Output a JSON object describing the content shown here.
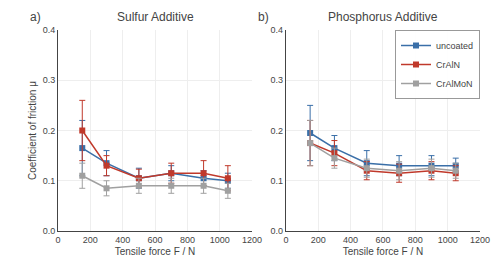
{
  "chart_data": [
    {
      "type": "line",
      "title": "Sulfur Additive",
      "annotations": [
        {
          "text": "a)"
        }
      ],
      "xlabel": "Tensile force F / N",
      "ylabel": "Coefficient of friction μ",
      "x": [
        150,
        300,
        500,
        700,
        900,
        1050
      ],
      "series": [
        {
          "name": "uncoated",
          "color": "#3a6fa8",
          "marker": "square",
          "values": [
            0.165,
            0.135,
            0.105,
            0.115,
            0.105,
            0.1
          ],
          "errors": [
            0.055,
            0.025,
            0.02,
            0.015,
            0.015,
            0.015
          ]
        },
        {
          "name": "CrAlN",
          "color": "#c0392b",
          "marker": "square",
          "values": [
            0.2,
            0.13,
            0.105,
            0.115,
            0.115,
            0.105
          ],
          "errors": [
            0.06,
            0.02,
            0.018,
            0.02,
            0.025,
            0.025
          ]
        },
        {
          "name": "CrAlMoN",
          "color": "#a0a0a0",
          "marker": "square",
          "values": [
            0.11,
            0.085,
            0.09,
            0.09,
            0.09,
            0.08
          ],
          "errors": [
            0.025,
            0.015,
            0.015,
            0.015,
            0.015,
            0.015
          ]
        }
      ],
      "xlim": [
        0,
        1200
      ],
      "ylim": [
        0,
        0.4
      ],
      "xticks": [
        0,
        200,
        400,
        600,
        800,
        1000,
        1200
      ],
      "yticks": [
        {
          "value": 0,
          "label": "0.0"
        },
        0.1,
        0.2,
        0.3,
        0.4
      ],
      "grid": true
    },
    {
      "type": "line",
      "title": "Phosphorus Additive",
      "annotations": [
        {
          "text": "b)"
        }
      ],
      "xlabel": "Tensile force F / N",
      "x": [
        150,
        300,
        500,
        700,
        900,
        1050
      ],
      "series": [
        {
          "name": "uncoated",
          "color": "#3a6fa8",
          "marker": "square",
          "values": [
            0.195,
            0.165,
            0.135,
            0.13,
            0.13,
            0.13
          ],
          "errors": [
            0.055,
            0.025,
            0.025,
            0.02,
            0.02,
            0.015
          ]
        },
        {
          "name": "CrAlN",
          "color": "#c0392b",
          "marker": "square",
          "values": [
            0.175,
            0.155,
            0.12,
            0.115,
            0.12,
            0.115
          ],
          "errors": [
            0.045,
            0.025,
            0.018,
            0.018,
            0.018,
            0.015
          ]
        },
        {
          "name": "CrAlMoN",
          "color": "#a0a0a0",
          "marker": "square",
          "values": [
            0.175,
            0.145,
            0.125,
            0.12,
            0.125,
            0.12
          ],
          "errors": [
            0.045,
            0.02,
            0.018,
            0.018,
            0.018,
            0.015
          ]
        }
      ],
      "xlim": [
        0,
        1200
      ],
      "ylim": [
        0,
        0.4
      ],
      "xticks": [
        0,
        200,
        400,
        600,
        800,
        1000,
        1200
      ],
      "yticks": [
        {
          "value": 0,
          "label": "0.0"
        },
        0.1,
        0.2,
        0.3,
        0.4
      ],
      "grid": true,
      "legend": "upper right"
    }
  ]
}
